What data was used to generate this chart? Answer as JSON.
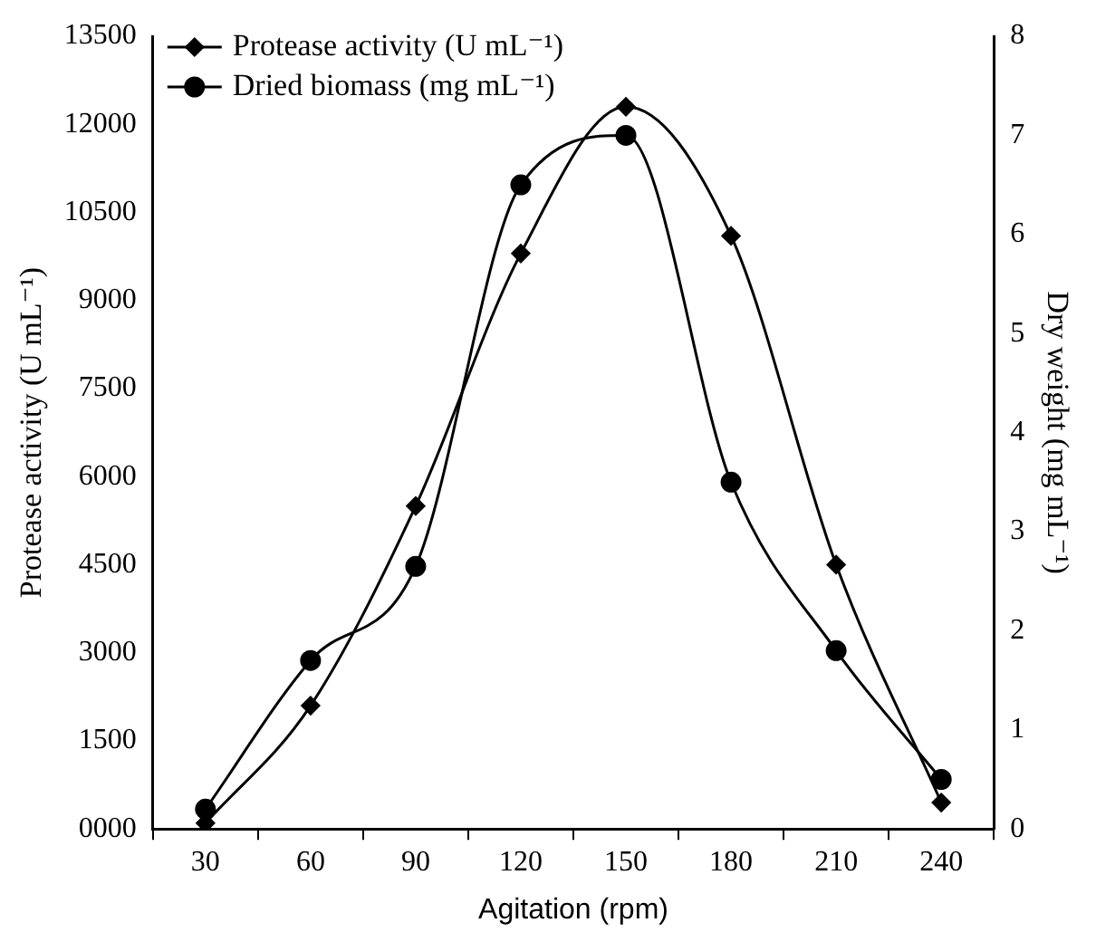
{
  "chart_data": {
    "type": "line",
    "xlabel": "Agitation (rpm)",
    "ylabel": "Protease activity (U mL⁻¹)",
    "y2label": "Dry weight (mg mL⁻¹)",
    "categories": [
      "30",
      "60",
      "90",
      "120",
      "150",
      "180",
      "210",
      "240"
    ],
    "series": [
      {
        "name": "Protease activity (U mL⁻¹)",
        "color": "#000000",
        "marker": "diamond",
        "values": [
          100,
          2100,
          5500,
          9800,
          12300,
          10100,
          4500,
          450
        ]
      },
      {
        "name": "Dried biomass (mg mL⁻¹)",
        "color": "#000000",
        "marker": "circle",
        "axis": "y2",
        "values": [
          0.2,
          1.7,
          2.65,
          6.5,
          7.0,
          3.5,
          1.8,
          0.5
        ]
      }
    ],
    "ylim": [
      0,
      13500
    ],
    "yticks": [
      {
        "value": 0,
        "label": "0000"
      },
      1500,
      3000,
      4500,
      6000,
      7500,
      9000,
      10500,
      12000,
      13500
    ],
    "y2lim": [
      0,
      8
    ],
    "y2ticks": [
      0,
      1,
      2,
      3,
      4,
      5,
      6,
      7,
      8
    ],
    "grid": false,
    "legend": "top left",
    "line_style": "solid"
  }
}
